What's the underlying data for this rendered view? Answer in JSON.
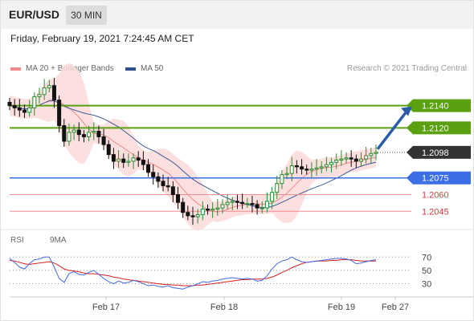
{
  "header": {
    "symbol": "EUR/USD",
    "timeframe": "30 MIN",
    "datetime": "Friday, February 19, 2021 7:24:45 AM CET"
  },
  "legend": {
    "items": [
      {
        "label": "MA 20 + Bollinger Bands",
        "color": "#f08080"
      },
      {
        "label": "MA 50",
        "color": "#2f4f8f"
      }
    ],
    "credit": "Research © 2021 Trading Central"
  },
  "rsi_legend": {
    "items": [
      {
        "label": "RSI",
        "color": "#4169e1"
      },
      {
        "label": "9MA",
        "color": "#d62020"
      }
    ]
  },
  "colors": {
    "bull": "#2e8b2e",
    "bear": "#111111",
    "bb": "#fbd9d9",
    "ma20": "#f08a8a",
    "ma50": "#3a5a9a",
    "resistance": "#5aa010",
    "support_blue": "#3c6ee6",
    "support_red": "#f08f8f",
    "arrow": "#2a5ca8"
  },
  "chart_data": [
    {
      "type": "candlestick",
      "title": "EUR/USD 30 MIN",
      "x_tick_labels": [
        "Feb 17",
        "Feb 18",
        "Feb 19",
        "Feb 27"
      ],
      "ylim": [
        1.2025,
        1.2165
      ],
      "levels": [
        {
          "price": 1.214,
          "label": "1.2140",
          "kind": "resistance"
        },
        {
          "price": 1.212,
          "label": "1.2120",
          "kind": "resistance"
        },
        {
          "price": 1.2098,
          "label": "1.2098",
          "kind": "last"
        },
        {
          "price": 1.2075,
          "label": "1.2075",
          "kind": "support"
        },
        {
          "price": 1.206,
          "label": "1.2060",
          "kind": "support"
        },
        {
          "price": 1.2045,
          "label": "1.2045",
          "kind": "support"
        }
      ],
      "forecast": {
        "from": 1.2098,
        "to": 1.214
      },
      "close": [
        1.214,
        1.2138,
        1.2136,
        1.2134,
        1.2138,
        1.2148,
        1.215,
        1.2156,
        1.2158,
        1.2145,
        1.2122,
        1.2108,
        1.2116,
        1.2118,
        1.2114,
        1.2112,
        1.2116,
        1.2117,
        1.2112,
        1.2105,
        1.2096,
        1.209,
        1.2092,
        1.2089,
        1.209,
        1.2093,
        1.2091,
        1.2087,
        1.208,
        1.2076,
        1.2072,
        1.2068,
        1.2067,
        1.206,
        1.2053,
        1.2044,
        1.2041,
        1.204,
        1.2042,
        1.2047,
        1.2046,
        1.2047,
        1.2048,
        1.2051,
        1.2053,
        1.2054,
        1.2053,
        1.2052,
        1.2052,
        1.2051,
        1.2048,
        1.2048,
        1.2054,
        1.2062,
        1.207,
        1.2078,
        1.2079,
        1.2086,
        1.2085,
        1.2083,
        1.2082,
        1.2083,
        1.2084,
        1.2085,
        1.2087,
        1.2089,
        1.2091,
        1.2092,
        1.2093,
        1.2092,
        1.209,
        1.2092,
        1.2095,
        1.2097,
        1.2098
      ]
    },
    {
      "type": "line",
      "title": "RSI",
      "series": [
        {
          "name": "RSI"
        },
        {
          "name": "9MA"
        }
      ],
      "y_tick_labels": [
        "70",
        "50",
        "30"
      ],
      "ylim": [
        15,
        80
      ],
      "rsi": [
        68,
        62,
        55,
        52,
        60,
        66,
        67,
        70,
        70,
        55,
        38,
        32,
        45,
        48,
        44,
        43,
        47,
        50,
        44,
        38,
        33,
        30,
        34,
        31,
        32,
        35,
        33,
        30,
        27,
        28,
        26,
        25,
        27,
        24,
        23,
        22,
        25,
        27,
        30,
        33,
        32,
        34,
        35,
        37,
        38,
        39,
        38,
        37,
        38,
        37,
        34,
        35,
        42,
        52,
        60,
        64,
        66,
        70,
        66,
        63,
        62,
        63,
        64,
        65,
        66,
        67,
        68,
        68,
        67,
        65,
        60,
        61,
        63,
        65,
        66
      ],
      "ma9": [
        65,
        64,
        62,
        60,
        59,
        60,
        61,
        62,
        63,
        61,
        57,
        52,
        50,
        49,
        48,
        46,
        45,
        45,
        44,
        43,
        42,
        40,
        39,
        37,
        36,
        35,
        34,
        33,
        32,
        31,
        30,
        29,
        29,
        28,
        28,
        27,
        27,
        27,
        28,
        28,
        29,
        30,
        31,
        32,
        33,
        34,
        35,
        36,
        36,
        37,
        37,
        37,
        38,
        40,
        43,
        47,
        50,
        54,
        57,
        60,
        62,
        63,
        64,
        64,
        64,
        65,
        65,
        66,
        66,
        66,
        65,
        64,
        64,
        64,
        64
      ]
    }
  ]
}
